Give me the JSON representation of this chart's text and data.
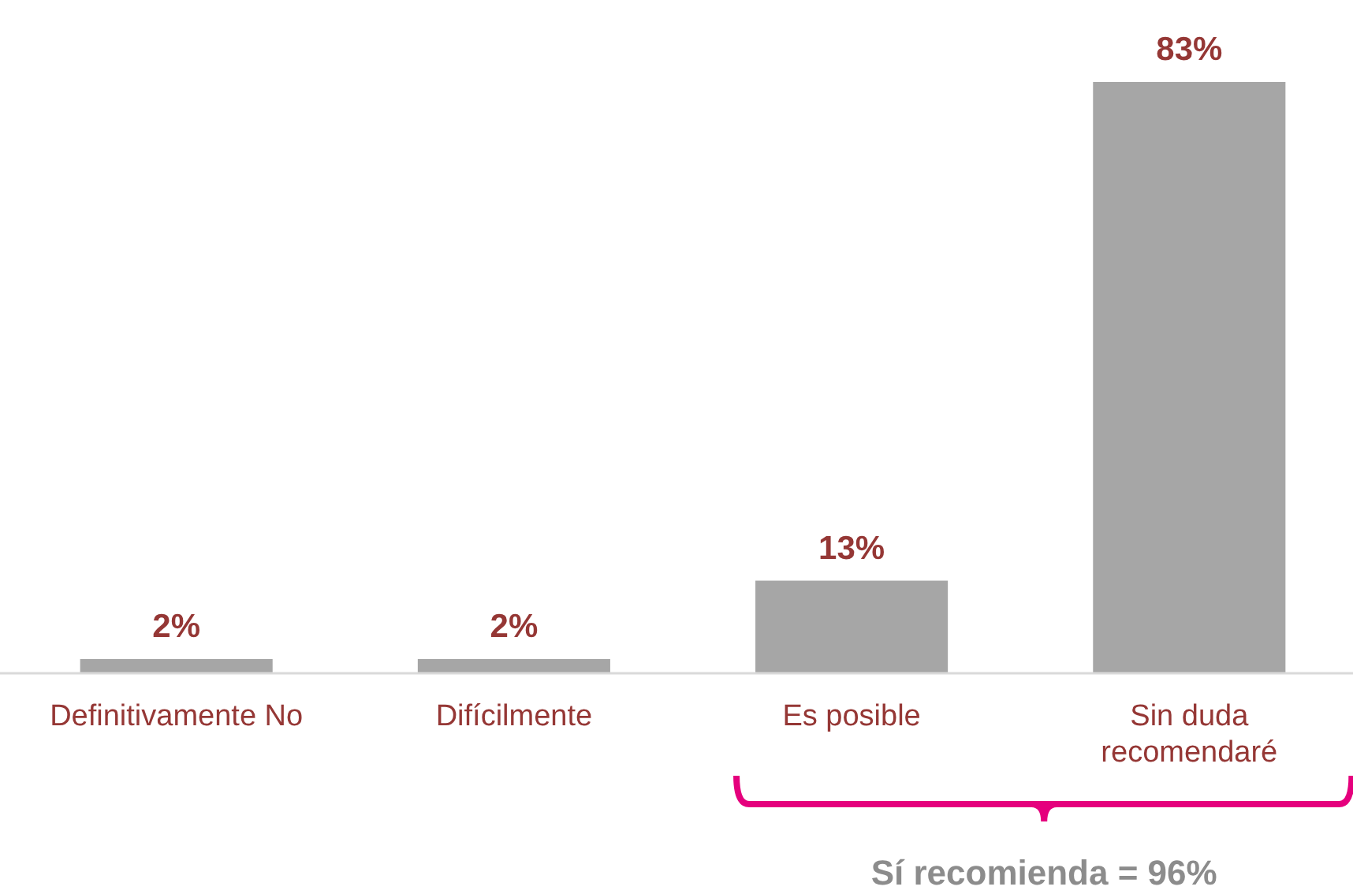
{
  "chart_data": {
    "type": "bar",
    "categories": [
      "Definitivamente No",
      "Difícilmente",
      "Es posible",
      "Sin duda recomendaré"
    ],
    "values": [
      2,
      2,
      13,
      83
    ],
    "color": "#a6a6a6",
    "value_labels": [
      "2%",
      "2%",
      "13%",
      "83%"
    ],
    "annotations": [
      "Sí recomienda = 96%"
    ]
  }
}
